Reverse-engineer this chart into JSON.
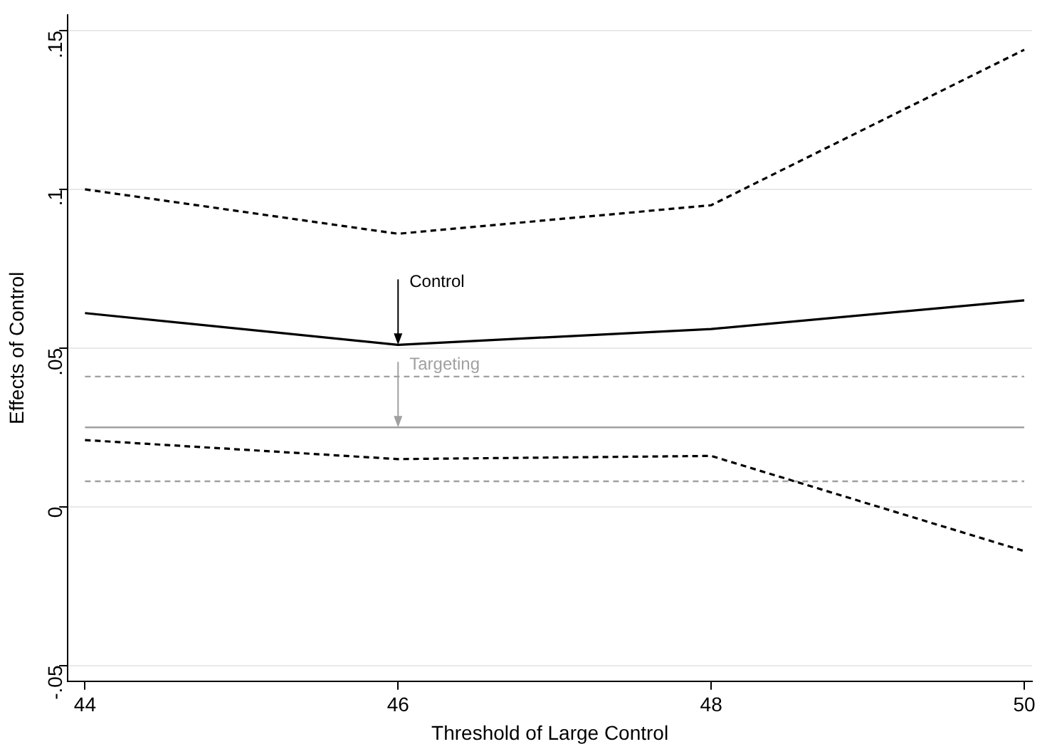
{
  "chart_data": {
    "type": "line",
    "xlabel": "Threshold of Large Control",
    "ylabel": "Effects of Control",
    "x": [
      44,
      46,
      48,
      50
    ],
    "series": [
      {
        "color": "#000000",
        "values": [
          0.061,
          0.051,
          0.056,
          0.065
        ],
        "line_style": "solid"
      },
      {
        "color": "#000000",
        "values": [
          0.1,
          0.086,
          0.095,
          0.144
        ],
        "line_style": "dashed"
      },
      {
        "color": "#000000",
        "values": [
          0.021,
          0.015,
          0.016,
          -0.014
        ],
        "line_style": "dashed"
      },
      {
        "color": "#a0a0a0",
        "values": [
          0.025,
          0.025,
          0.025,
          0.025
        ],
        "line_style": "solid"
      },
      {
        "color": "#a0a0a0",
        "values": [
          0.041,
          0.041,
          0.041,
          0.041
        ],
        "line_style": "dashed"
      },
      {
        "color": "#a0a0a0",
        "values": [
          0.008,
          0.008,
          0.008,
          0.008
        ],
        "line_style": "dashed"
      }
    ],
    "xlim": [
      43.89,
      50.05
    ],
    "xticks": [
      44,
      46,
      48,
      50
    ],
    "ylim": [
      -0.055,
      0.155
    ],
    "yticks": [
      {
        "value": -0.05,
        "label": "-.05"
      },
      {
        "value": 0,
        "label": "0"
      },
      {
        "value": 0.05,
        "label": ".05"
      },
      {
        "value": 0.1,
        "label": ".1"
      },
      {
        "value": 0.15,
        "label": ".15"
      }
    ],
    "grid": "y",
    "legend": false,
    "marker": "none",
    "annotations": [
      {
        "text": "Control",
        "x": 46,
        "y": 0.051
      },
      {
        "text": "Targeting",
        "x": 46,
        "y": 0.025
      }
    ]
  }
}
